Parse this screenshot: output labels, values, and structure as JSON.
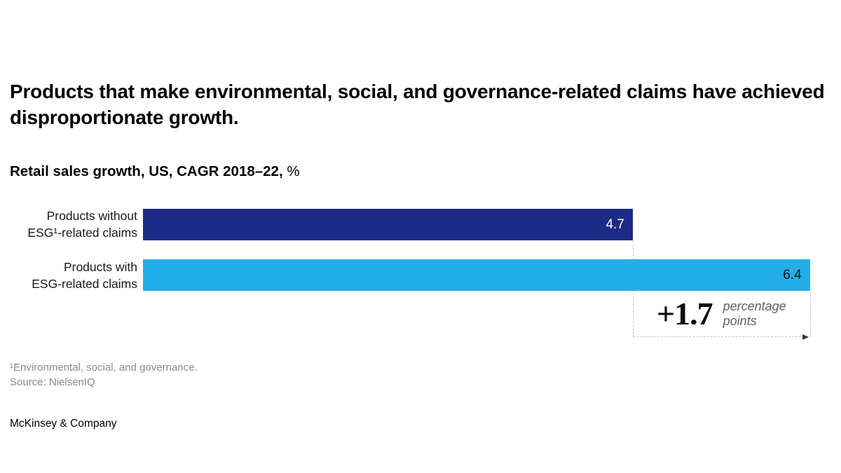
{
  "header": {
    "title": "Products that make environmental, social, and governance-related claims have achieved disproportionate growth.",
    "subtitle_bold": "Retail sales growth, US, CAGR 2018–22,",
    "subtitle_unit": " %"
  },
  "chart_data": {
    "type": "bar",
    "orientation": "horizontal",
    "title": "Retail sales growth, US, CAGR 2018–22, %",
    "categories": [
      "Products without ESG¹-related claims",
      "Products with ESG-related claims"
    ],
    "values": [
      4.7,
      6.4
    ],
    "value_labels": [
      "4.7",
      "6.4"
    ],
    "bar_colors": [
      "#1c2b85",
      "#21aee6"
    ],
    "value_label_colors": [
      "#ffffff",
      "#101010"
    ],
    "xlim": [
      0,
      6.7
    ],
    "grid": false,
    "legend": "none",
    "annotation": {
      "delta": "+1.7",
      "unit": "percentage points"
    }
  },
  "labels": {
    "row1": {
      "line1": "Products without",
      "line2": "ESG¹-related claims"
    },
    "row2": {
      "line1": "Products with",
      "line2": "ESG-related claims"
    }
  },
  "delta": {
    "value": "+1.7",
    "unit_line1": "percentage",
    "unit_line2": "points"
  },
  "footer": {
    "footnote": "¹Environmental, social, and governance.",
    "source": "Source: NielsenIQ",
    "logo": "McKinsey & Company"
  }
}
